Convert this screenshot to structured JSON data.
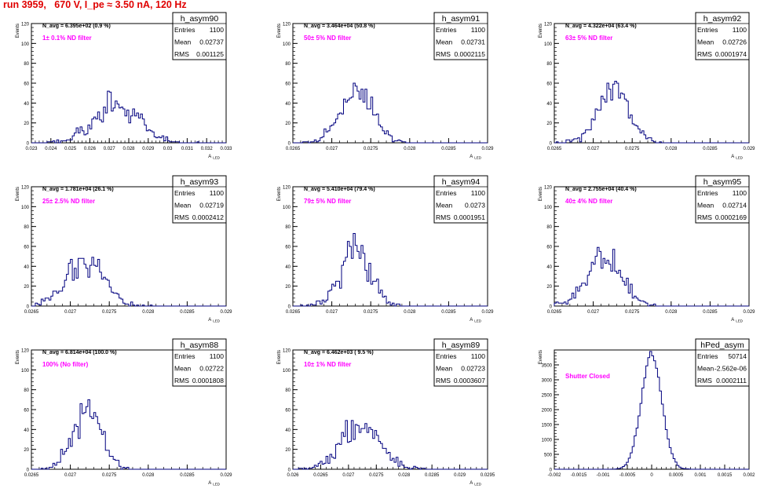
{
  "run_title": "run 3959,   670 V, I_pe ≈ 3.50 nA, 120 Hz",
  "colors": {
    "histogram": "#00007f",
    "annotation": "#ff00ff",
    "title": "#e00000",
    "axis": "#000000"
  },
  "stats_labels": {
    "entries": "Entries",
    "mean": "Mean",
    "rms": "RMS"
  },
  "chart_data": [
    {
      "type": "histogram",
      "name": "h_asym90",
      "ylabel": "Events",
      "xlabel": "A_LED",
      "n_avg_text": "N_avg = 6.395e+02 (0.9 %)",
      "filter_text": "1± 0.1% ND filter",
      "stats": {
        "entries": "1100",
        "mean": "0.02737",
        "rms": "0.001125"
      },
      "xlim": [
        0.023,
        0.033
      ],
      "ylim": [
        0,
        120
      ],
      "xticks": [
        "0.023",
        "0.024",
        "0.025",
        "0.026",
        "0.027",
        "0.028",
        "0.029",
        "0.03",
        "0.031",
        "0.032",
        "0.033"
      ],
      "yticks": [
        "0",
        "20",
        "40",
        "60",
        "80",
        "100",
        "120"
      ],
      "gen": {
        "mean": 0.02737,
        "sigma": 0.001125,
        "entries": 1100,
        "bins": 100,
        "seed": 90
      }
    },
    {
      "type": "histogram",
      "name": "h_asym91",
      "ylabel": "Events",
      "xlabel": "A_LED",
      "n_avg_text": "N_avg = 3.464e+04 (50.8 %)",
      "filter_text": "50± 5% ND filter",
      "stats": {
        "entries": "1100",
        "mean": "0.02731",
        "rms": "0.0002115"
      },
      "xlim": [
        0.0265,
        0.029
      ],
      "ylim": [
        0,
        120
      ],
      "xticks": [
        "0.0265",
        "0.027",
        "0.0275",
        "0.028",
        "0.0285",
        "0.029"
      ],
      "yticks": [
        "0",
        "20",
        "40",
        "60",
        "80",
        "100",
        "120"
      ],
      "gen": {
        "mean": 0.02731,
        "sigma": 0.0002115,
        "entries": 1100,
        "bins": 100,
        "seed": 91
      }
    },
    {
      "type": "histogram",
      "name": "h_asym92",
      "ylabel": "Events",
      "xlabel": "A_LED",
      "n_avg_text": "N_avg = 4.322e+04 (63.4 %)",
      "filter_text": "63± 5% ND filter",
      "stats": {
        "entries": "1100",
        "mean": "0.02726",
        "rms": "0.0001974"
      },
      "xlim": [
        0.0265,
        0.029
      ],
      "ylim": [
        0,
        120
      ],
      "xticks": [
        "0.0265",
        "0.027",
        "0.0275",
        "0.028",
        "0.0285",
        "0.029"
      ],
      "yticks": [
        "0",
        "20",
        "40",
        "60",
        "80",
        "100",
        "120"
      ],
      "gen": {
        "mean": 0.02726,
        "sigma": 0.0001974,
        "entries": 1100,
        "bins": 100,
        "seed": 92
      }
    },
    {
      "type": "histogram",
      "name": "h_asym93",
      "ylabel": "Events",
      "xlabel": "A_LED",
      "n_avg_text": "N_avg = 1.781e+04 (26.1 %)",
      "filter_text": "25± 2.5% ND filter",
      "stats": {
        "entries": "1100",
        "mean": "0.02719",
        "rms": "0.0002412"
      },
      "xlim": [
        0.0265,
        0.029
      ],
      "ylim": [
        0,
        120
      ],
      "xticks": [
        "0.0265",
        "0.027",
        "0.0275",
        "0.028",
        "0.0285",
        "0.029"
      ],
      "yticks": [
        "0",
        "20",
        "40",
        "60",
        "80",
        "100",
        "120"
      ],
      "gen": {
        "mean": 0.02719,
        "sigma": 0.0002412,
        "entries": 1100,
        "bins": 100,
        "seed": 93
      }
    },
    {
      "type": "histogram",
      "name": "h_asym94",
      "ylabel": "Events",
      "xlabel": "A_LED",
      "n_avg_text": "N_avg = 5.410e+04 (79.4 %)",
      "filter_text": "79± 5% ND filter",
      "stats": {
        "entries": "1100",
        "mean": "0.0273",
        "rms": "0.0001951"
      },
      "xlim": [
        0.0265,
        0.029
      ],
      "ylim": [
        0,
        120
      ],
      "xticks": [
        "0.0265",
        "0.027",
        "0.0275",
        "0.028",
        "0.0285",
        "0.029"
      ],
      "yticks": [
        "0",
        "20",
        "40",
        "60",
        "80",
        "100",
        "120"
      ],
      "gen": {
        "mean": 0.0273,
        "sigma": 0.0001951,
        "entries": 1100,
        "bins": 100,
        "seed": 94
      }
    },
    {
      "type": "histogram",
      "name": "h_asym95",
      "ylabel": "Events",
      "xlabel": "A_LED",
      "n_avg_text": "N_avg = 2.755e+04 (40.4 %)",
      "filter_text": "40± 4% ND filter",
      "stats": {
        "entries": "1100",
        "mean": "0.02714",
        "rms": "0.0002169"
      },
      "xlim": [
        0.0265,
        0.029
      ],
      "ylim": [
        0,
        120
      ],
      "xticks": [
        "0.0265",
        "0.027",
        "0.0275",
        "0.028",
        "0.0285",
        "0.029"
      ],
      "yticks": [
        "0",
        "20",
        "40",
        "60",
        "80",
        "100",
        "120"
      ],
      "gen": {
        "mean": 0.02714,
        "sigma": 0.0002169,
        "entries": 1100,
        "bins": 100,
        "seed": 95
      }
    },
    {
      "type": "histogram",
      "name": "h_asym88",
      "ylabel": "Events",
      "xlabel": "A_LED",
      "n_avg_text": "N_avg = 6.814e+04 (100.0 %)",
      "filter_text": "100% (No filter)",
      "stats": {
        "entries": "1100",
        "mean": "0.02722",
        "rms": "0.0001808"
      },
      "xlim": [
        0.0265,
        0.029
      ],
      "ylim": [
        0,
        120
      ],
      "xticks": [
        "0.0265",
        "0.027",
        "0.0275",
        "0.028",
        "0.0285",
        "0.029"
      ],
      "yticks": [
        "0",
        "20",
        "40",
        "60",
        "80",
        "100",
        "120"
      ],
      "gen": {
        "mean": 0.02722,
        "sigma": 0.0001808,
        "entries": 1100,
        "bins": 100,
        "seed": 88
      }
    },
    {
      "type": "histogram",
      "name": "h_asym89",
      "ylabel": "Events",
      "xlabel": "A_LED",
      "n_avg_text": "N_avg = 6.462e+03 ( 9.5 %)",
      "filter_text": "10± 1% ND filter",
      "stats": {
        "entries": "1100",
        "mean": "0.02723",
        "rms": "0.0003607"
      },
      "xlim": [
        0.026,
        0.0295
      ],
      "ylim": [
        0,
        120
      ],
      "xticks": [
        "0.026",
        "0.0265",
        "0.027",
        "0.0275",
        "0.028",
        "0.0285",
        "0.029",
        "0.0295"
      ],
      "yticks": [
        "0",
        "20",
        "40",
        "60",
        "80",
        "100",
        "120"
      ],
      "gen": {
        "mean": 0.02723,
        "sigma": 0.0003607,
        "entries": 1100,
        "bins": 100,
        "seed": 89
      }
    },
    {
      "type": "histogram",
      "name": "hPed_asym",
      "ylabel": "Events",
      "xlabel": "",
      "n_avg_text": "",
      "filter_text": "Shutter Closed",
      "stats": {
        "entries": "50714",
        "mean": "-2.562e-06",
        "rms": "0.0002111"
      },
      "xlim": [
        -0.002,
        0.002
      ],
      "ylim": [
        0,
        4000
      ],
      "xticks": [
        "-0.002",
        "-0.0015",
        "-0.001",
        "-0.0005",
        "0",
        "0.0005",
        "0.001",
        "0.0015",
        "0.002"
      ],
      "yticks": [
        "0",
        "500",
        "1000",
        "1500",
        "2000",
        "2500",
        "3000",
        "3500"
      ],
      "gen": {
        "mean": -2.562e-06,
        "sigma": 0.0002111,
        "entries": 50714,
        "bins": 100,
        "seed": 7
      }
    }
  ]
}
